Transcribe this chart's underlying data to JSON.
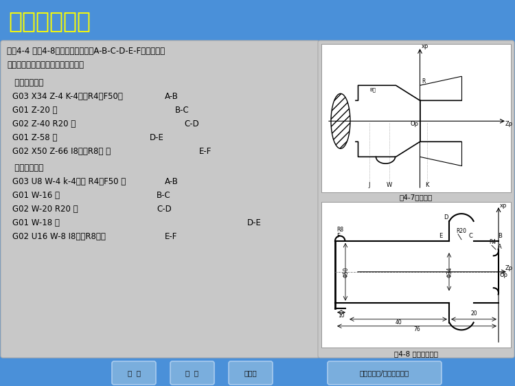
{
  "title": "数控车削编程",
  "title_bg": "#1565C0",
  "title_color": "#FFFF00",
  "main_bg": "#4A90D9",
  "content_bg": "#C8C8C8",
  "problem_line1": "例题4-4 如图4-8所示，走刀路线为A-B-C-D-E-F，试分别用",
  "problem_line2": "绝对坐标方式和增量坐标方式编程。",
  "section1_title": "   绝对坐标编程",
  "section1_lines": [
    [
      "G03 X34 Z-4 K-4（或R4）F50；",
      "A-B"
    ],
    [
      "G01 Z-20 ；",
      "B-C"
    ],
    [
      "G02 Z-40 R20 ；",
      "C-D"
    ],
    [
      "G01 Z-58 ；",
      "D-E"
    ],
    [
      "G02 X50 Z-66 I8（或R8） ；",
      "E-F"
    ]
  ],
  "section2_title": "   增量坐标编程",
  "section2_lines": [
    [
      "G03 U8 W-4 k-4（或 R4）F50 ；",
      "A-B"
    ],
    [
      "G01 W-16 ；",
      "B-C"
    ],
    [
      "G02 W-20 R20 ；",
      "C-D"
    ],
    [
      "G01 W-18 ；",
      "D-E"
    ],
    [
      "G02 U16 W-8 I8（或R8）；",
      "E-F"
    ]
  ],
  "fig1_caption": "图4-7圆弧插补",
  "fig2_caption": "图4-8 圆弧插补应用",
  "bottom_buttons": [
    "主  页",
    "目  录",
    "上一页",
    "下一页条号/科技智能制造"
  ],
  "bottom_bg": "#1E5BB0"
}
